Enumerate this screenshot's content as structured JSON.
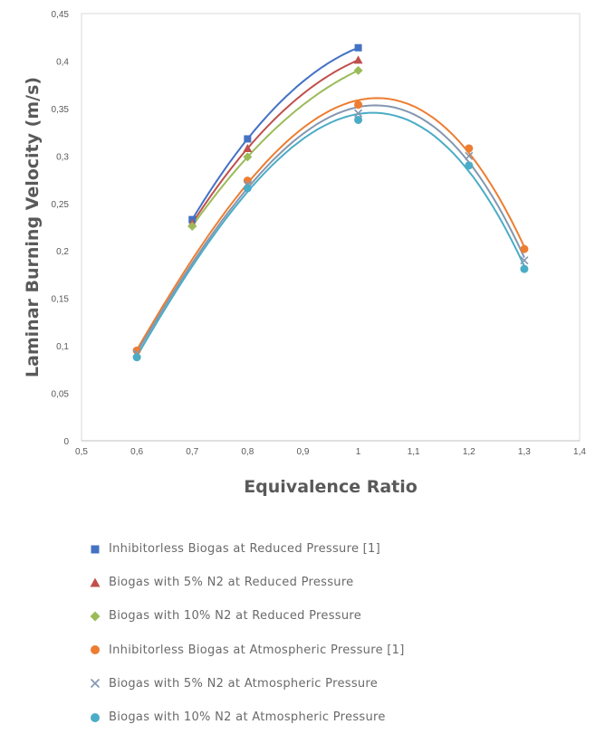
{
  "chart_data": {
    "type": "scatter",
    "title": "",
    "xlabel": "Equivalence Ratio",
    "ylabel": "Laminar Burning Velocity (m/s)",
    "xlim": [
      0.5,
      1.4
    ],
    "ylim": [
      0,
      0.45
    ],
    "x_ticks": [
      "0,5",
      "0,6",
      "0,7",
      "0,8",
      "0,9",
      "1",
      "1,1",
      "1,2",
      "1,3",
      "1,4"
    ],
    "y_ticks": [
      "0",
      "0,05",
      "0,1",
      "0,15",
      "0,2",
      "0,25",
      "0,3",
      "0,35",
      "0,4",
      "0,45"
    ],
    "grid": false,
    "legend_position": "bottom",
    "trendline": "polynomial",
    "series": [
      {
        "name": "Inhibitorless Biogas at Reduced Pressure [1]",
        "marker": "square",
        "color": "#4472c4",
        "x": [
          0.7,
          0.8,
          1.0
        ],
        "y": [
          0.233,
          0.318,
          0.414
        ]
      },
      {
        "name": "Biogas with 5% N2 at Reduced Pressure",
        "marker": "triangle",
        "color": "#c0504d",
        "x": [
          0.7,
          0.8,
          1.0
        ],
        "y": [
          0.229,
          0.308,
          0.401
        ]
      },
      {
        "name": "Biogas with 10% N2 at Reduced Pressure",
        "marker": "diamond",
        "color": "#9bbb59",
        "x": [
          0.7,
          0.8,
          1.0
        ],
        "y": [
          0.226,
          0.299,
          0.39
        ]
      },
      {
        "name": "Inhibitorless Biogas at Atmospheric Pressure [1]",
        "marker": "circle",
        "color": "#ed7d31",
        "x": [
          0.6,
          0.8,
          1.0,
          1.2,
          1.3
        ],
        "y": [
          0.095,
          0.274,
          0.354,
          0.308,
          0.202
        ]
      },
      {
        "name": "Biogas with 5% N2 at Atmospheric Pressure",
        "marker": "x",
        "color": "#8497b0",
        "x": [
          0.6,
          0.8,
          1.0,
          1.2,
          1.3
        ],
        "y": [
          0.092,
          0.27,
          0.345,
          0.3,
          0.19
        ]
      },
      {
        "name": "Biogas with 10% N2 at Atmospheric Pressure",
        "marker": "circle",
        "color": "#4bacc6",
        "x": [
          0.6,
          0.8,
          1.0,
          1.2,
          1.3
        ],
        "y": [
          0.088,
          0.266,
          0.338,
          0.29,
          0.181
        ]
      }
    ]
  }
}
